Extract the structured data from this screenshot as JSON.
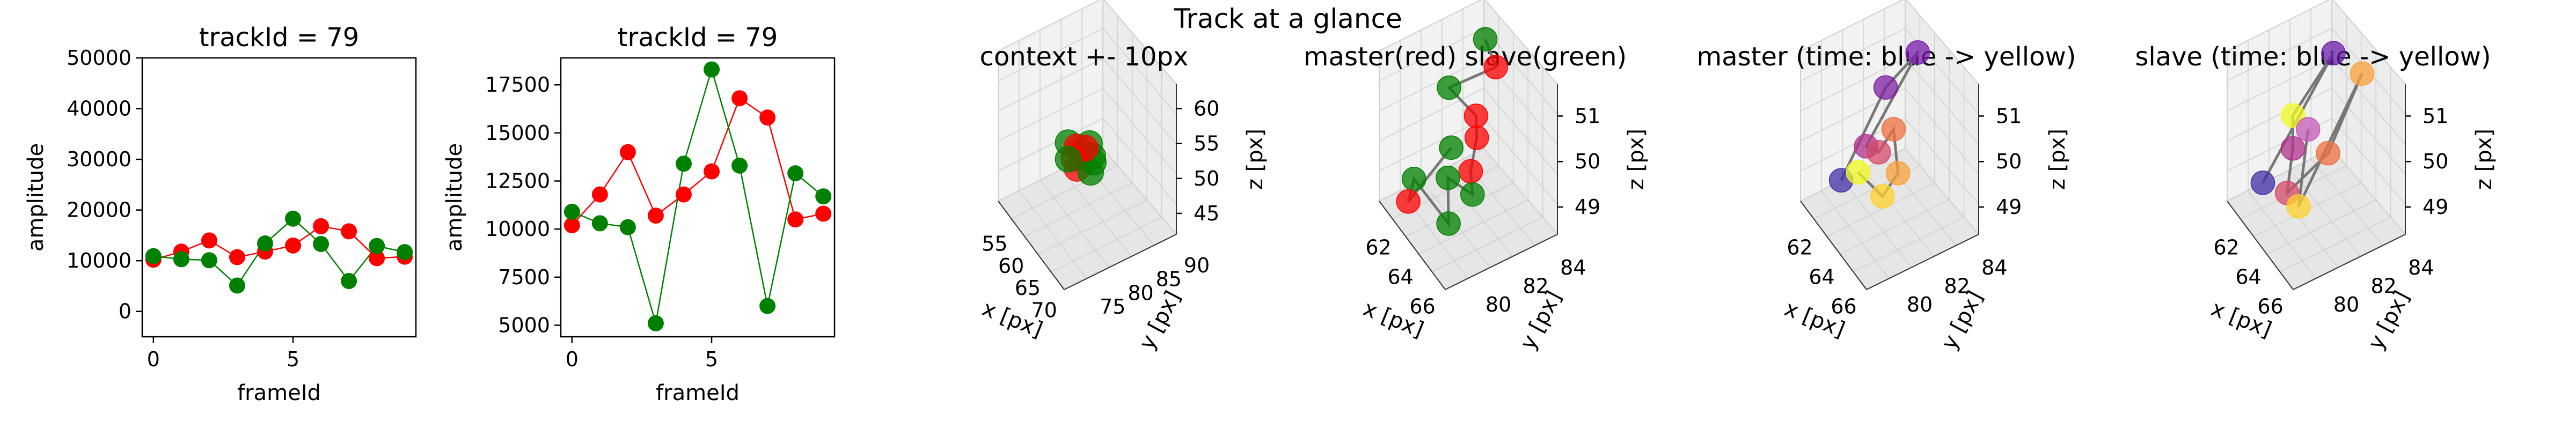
{
  "suptitle": "Track at a glance",
  "chart_data": [
    {
      "type": "line",
      "title": "trackId = 79",
      "xlabel": "frameId",
      "ylabel": "amplitude",
      "xlim": [
        -0.4,
        9.4
      ],
      "ylim": [
        -5000,
        50000
      ],
      "xticks": [
        "0",
        "5"
      ],
      "xtick_values": [
        0,
        5
      ],
      "yticks": [
        "0",
        "10000",
        "20000",
        "30000",
        "40000",
        "50000"
      ],
      "ytick_values": [
        0,
        10000,
        20000,
        30000,
        40000,
        50000
      ],
      "x": [
        0,
        1,
        2,
        3,
        4,
        5,
        6,
        7,
        8,
        9
      ],
      "series": [
        {
          "color": "#ff0000",
          "values": [
            10200,
            11800,
            14000,
            10700,
            11800,
            13000,
            16800,
            15800,
            10500,
            10800
          ]
        },
        {
          "color": "#008000",
          "values": [
            10900,
            10300,
            10100,
            5100,
            13400,
            18300,
            13300,
            6000,
            12900,
            11700
          ]
        }
      ]
    },
    {
      "type": "line",
      "title": "trackId = 79",
      "xlabel": "frameId",
      "ylabel": "amplitude",
      "xlim": [
        -0.4,
        9.4
      ],
      "ylim": [
        4400,
        18900
      ],
      "xticks": [
        "0",
        "5"
      ],
      "xtick_values": [
        0,
        5
      ],
      "yticks": [
        "5000",
        "7500",
        "10000",
        "12500",
        "15000",
        "17500"
      ],
      "ytick_values": [
        5000,
        7500,
        10000,
        12500,
        15000,
        17500
      ],
      "x": [
        0,
        1,
        2,
        3,
        4,
        5,
        6,
        7,
        8,
        9
      ],
      "series": [
        {
          "color": "#ff0000",
          "values": [
            10200,
            11800,
            14000,
            10700,
            11800,
            13000,
            16800,
            15800,
            10500,
            10800
          ]
        },
        {
          "color": "#008000",
          "values": [
            10900,
            10300,
            10100,
            5100,
            13400,
            18300,
            13300,
            6000,
            12900,
            11700
          ]
        }
      ]
    },
    {
      "type": "scatter",
      "title": "context +- 10px",
      "xlabel": "x [px]",
      "ylabel": "y [px]",
      "zlabel": "z [px]",
      "xticks": [
        "55",
        "60",
        "65",
        "70"
      ],
      "yticks": [
        "75",
        "80",
        "85",
        "90"
      ],
      "zticks": [
        "45",
        "50",
        "55",
        "60"
      ],
      "points": [
        {
          "x": 62.5,
          "y": 81.5,
          "z": 50.2,
          "color": "#008000"
        },
        {
          "x": 63.2,
          "y": 82.0,
          "z": 50.1,
          "color": "#ff0000"
        },
        {
          "x": 64.0,
          "y": 82.8,
          "z": 50.3,
          "color": "#008000"
        },
        {
          "x": 64.8,
          "y": 81.2,
          "z": 49.8,
          "color": "#ff0000"
        },
        {
          "x": 65.5,
          "y": 82.4,
          "z": 50.0,
          "color": "#008000"
        },
        {
          "x": 63.8,
          "y": 83.2,
          "z": 49.6,
          "color": "#008000"
        },
        {
          "x": 65.0,
          "y": 80.8,
          "z": 50.4,
          "color": "#ff0000"
        },
        {
          "x": 66.2,
          "y": 81.8,
          "z": 49.9,
          "color": "#008000"
        },
        {
          "x": 62.8,
          "y": 83.0,
          "z": 49.7,
          "color": "#ff0000"
        },
        {
          "x": 64.3,
          "y": 80.6,
          "z": 50.2,
          "color": "#008000"
        }
      ]
    },
    {
      "type": "scatter",
      "title": "master(red) slave(green)",
      "xlabel": "x [px]",
      "ylabel": "y [px]",
      "zlabel": "z [px]",
      "xticks": [
        "62",
        "64",
        "66"
      ],
      "yticks": [
        "80",
        "82",
        "84"
      ],
      "zticks": [
        "49",
        "50",
        "51"
      ],
      "points": [
        {
          "x": 62.6,
          "y": 83.2,
          "z": 50.9,
          "color": "#008000"
        },
        {
          "x": 63.8,
          "y": 83.0,
          "z": 50.8,
          "color": "#ff0000"
        },
        {
          "x": 62.2,
          "y": 82.0,
          "z": 50.3,
          "color": "#008000"
        },
        {
          "x": 63.5,
          "y": 82.4,
          "z": 50.1,
          "color": "#ff0000"
        },
        {
          "x": 64.8,
          "y": 81.8,
          "z": 50.2,
          "color": "#ff0000"
        },
        {
          "x": 65.6,
          "y": 81.2,
          "z": 50.0,
          "color": "#ff0000"
        },
        {
          "x": 66.4,
          "y": 80.9,
          "z": 49.9,
          "color": "#008000"
        },
        {
          "x": 64.2,
          "y": 81.0,
          "z": 49.6,
          "color": "#008000"
        },
        {
          "x": 66.0,
          "y": 80.2,
          "z": 49.5,
          "color": "#008000"
        },
        {
          "x": 62.3,
          "y": 80.6,
          "z": 49.2,
          "color": "#008000"
        },
        {
          "x": 62.9,
          "y": 80.1,
          "z": 49.1,
          "color": "#ff0000"
        },
        {
          "x": 63.2,
          "y": 81.6,
          "z": 49.7,
          "color": "#008000"
        }
      ]
    },
    {
      "type": "scatter",
      "title": "master (time: blue -> yellow)",
      "xlabel": "x [px]",
      "ylabel": "y [px]",
      "zlabel": "z [px]",
      "xticks": [
        "62",
        "64",
        "66"
      ],
      "yticks": [
        "80",
        "82",
        "84"
      ],
      "zticks": [
        "49",
        "50",
        "51"
      ],
      "points": [
        {
          "x": 62.5,
          "y": 81.2,
          "z": 48.9,
          "color": "#3f2fa6"
        },
        {
          "x": 62.8,
          "y": 82.8,
          "z": 50.3,
          "color": "#7b1fa2"
        },
        {
          "x": 63.6,
          "y": 83.6,
          "z": 51.0,
          "color": "#7a1cac"
        },
        {
          "x": 63.2,
          "y": 81.8,
          "z": 49.6,
          "color": "#b0308c"
        },
        {
          "x": 64.8,
          "y": 81.4,
          "z": 50.1,
          "color": "#d44a6a"
        },
        {
          "x": 64.4,
          "y": 82.2,
          "z": 50.2,
          "color": "#ee7040"
        },
        {
          "x": 65.8,
          "y": 81.6,
          "z": 50.0,
          "color": "#fba03a"
        },
        {
          "x": 66.2,
          "y": 80.8,
          "z": 49.9,
          "color": "#fdd22a"
        },
        {
          "x": 65.2,
          "y": 80.4,
          "z": 50.1,
          "color": "#f0f921"
        }
      ]
    },
    {
      "type": "scatter",
      "title": "slave (time: blue -> yellow)",
      "xlabel": "x [px]",
      "ylabel": "y [px]",
      "zlabel": "z [px]",
      "xticks": [
        "62",
        "64",
        "66"
      ],
      "yticks": [
        "80",
        "82",
        "84"
      ],
      "zticks": [
        "49",
        "50",
        "51"
      ],
      "points": [
        {
          "x": 62.2,
          "y": 81.0,
          "z": 48.8,
          "color": "#3f2fa6"
        },
        {
          "x": 63.0,
          "y": 83.4,
          "z": 51.0,
          "color": "#6a1da8"
        },
        {
          "x": 62.6,
          "y": 82.0,
          "z": 50.0,
          "color": "#f0f921"
        },
        {
          "x": 63.4,
          "y": 81.6,
          "z": 49.7,
          "color": "#b0308c"
        },
        {
          "x": 64.6,
          "y": 80.8,
          "z": 49.4,
          "color": "#d44a6a"
        },
        {
          "x": 65.8,
          "y": 81.8,
          "z": 50.3,
          "color": "#ee7040"
        },
        {
          "x": 64.8,
          "y": 83.6,
          "z": 51.1,
          "color": "#fba03a"
        },
        {
          "x": 66.4,
          "y": 80.4,
          "z": 49.8,
          "color": "#fdd22a"
        },
        {
          "x": 63.8,
          "y": 82.0,
          "z": 50.1,
          "color": "#c45ab8"
        }
      ]
    }
  ]
}
